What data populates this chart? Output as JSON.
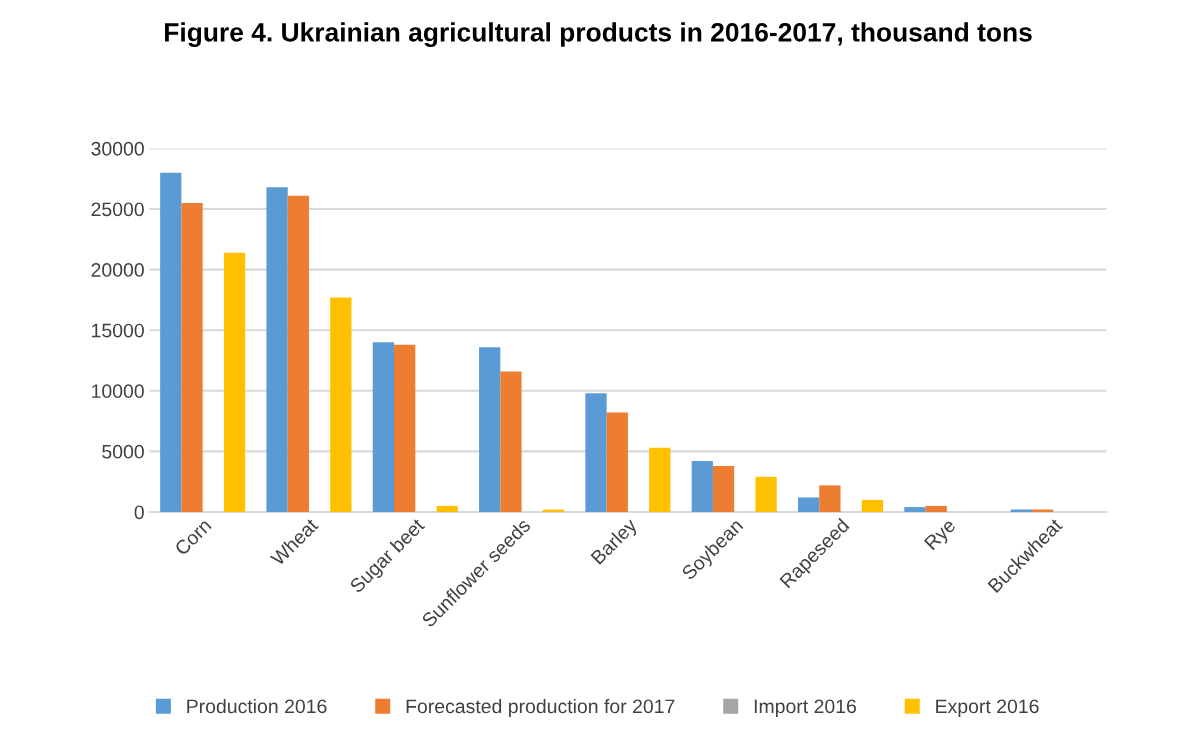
{
  "chart_data": {
    "type": "bar",
    "title": "Figure 4. Ukrainian agricultural products in 2016-2017, thousand tons",
    "categories": [
      "Corn",
      "Wheat",
      "Sugar beet",
      "Sunflower seeds",
      "Barley",
      "Soybean",
      "Rapeseed",
      "Rye",
      "Buckwheat"
    ],
    "series": [
      {
        "name": "Production 2016",
        "color": "#5b9bd5",
        "values": [
          28000,
          26800,
          14000,
          13600,
          9800,
          4200,
          1200,
          400,
          200
        ]
      },
      {
        "name": "Forecasted production for 2017",
        "color": "#ed7d31",
        "values": [
          25500,
          26100,
          13800,
          11600,
          8200,
          3800,
          2200,
          500,
          200
        ]
      },
      {
        "name": "Import 2016",
        "color": "#a5a5a5",
        "values": [
          0,
          0,
          0,
          0,
          0,
          0,
          0,
          0,
          0
        ]
      },
      {
        "name": "Export 2016",
        "color": "#ffc000",
        "values": [
          21400,
          17700,
          500,
          200,
          5300,
          2900,
          1000,
          0,
          0
        ]
      }
    ],
    "ylim": [
      0,
      30000
    ],
    "yticks": [
      0,
      5000,
      10000,
      15000,
      20000,
      25000,
      30000
    ],
    "grid": "y",
    "legend": "bottom"
  }
}
